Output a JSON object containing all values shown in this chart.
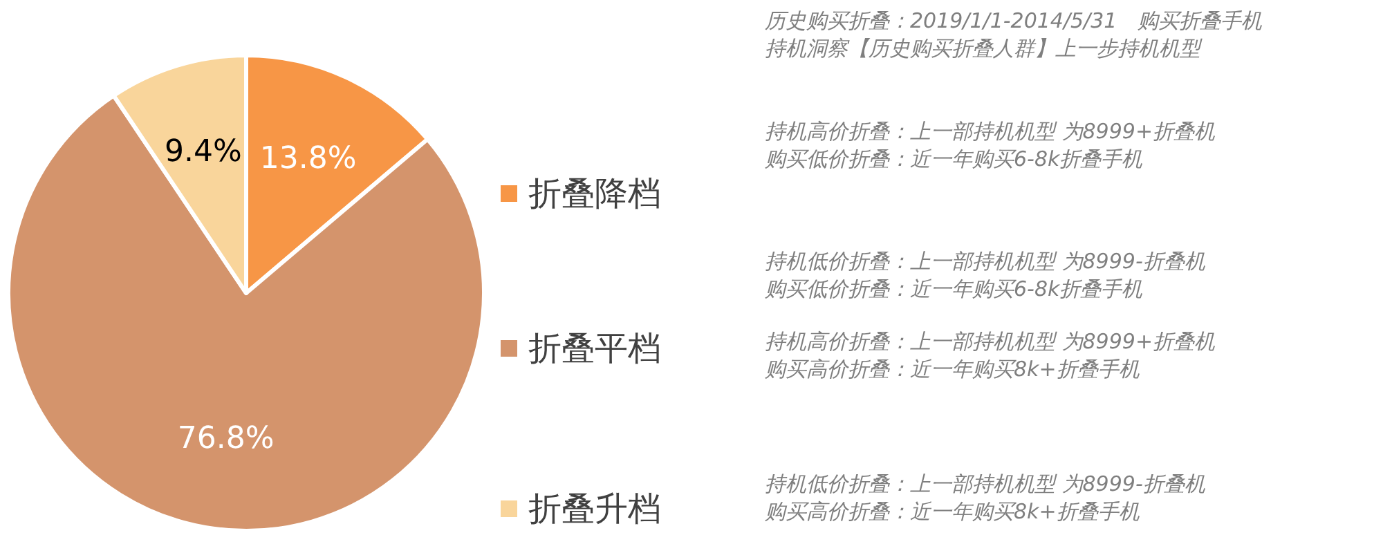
{
  "chart_data": {
    "type": "pie",
    "categories": [
      "折叠降档",
      "折叠平档",
      "折叠升档"
    ],
    "values": [
      13.8,
      76.8,
      9.4
    ],
    "value_labels": [
      "13.8%",
      "76.8%",
      "9.4%"
    ],
    "colors": [
      "#f79646",
      "#d4946c",
      "#f9d59b"
    ],
    "legend": "right",
    "annotations": [
      "历史购买折叠：2019/1/1-2014/5/31　购买折叠手机",
      "持机洞察【历史购买折叠人群】上一步持机机型",
      "持机高价折叠：上一部持机机型  为8999+折叠机",
      "购买低价折叠：近一年购买6-8k折叠手机",
      "持机低价折叠：上一部持机机型  为8999-折叠机",
      "购买低价折叠：近一年购买6-8k折叠手机",
      "持机高价折叠：上一部持机机型  为8999+折叠机",
      "购买高价折叠：近一年购买8k+折叠手机",
      "持机低价折叠：上一部持机机型  为8999-折叠机",
      "购买高价折叠：近一年购买8k+折叠手机"
    ]
  }
}
